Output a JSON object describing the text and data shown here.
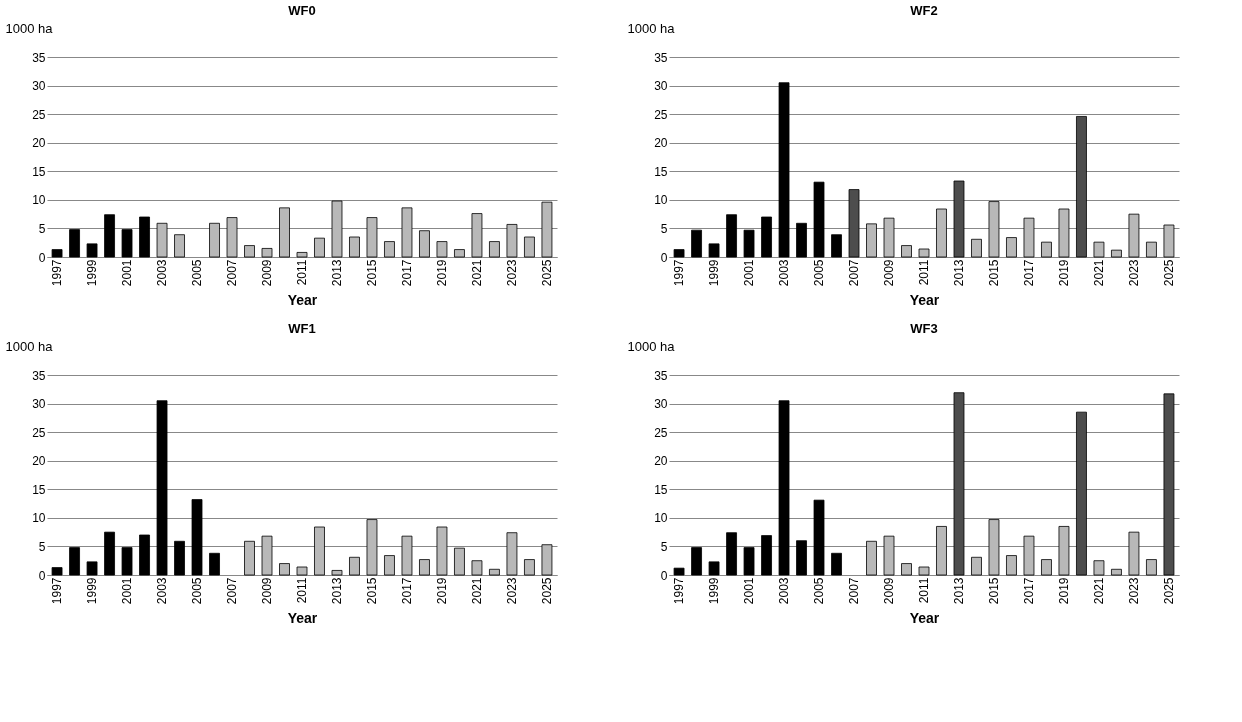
{
  "chart_data": [
    {
      "type": "bar",
      "title": "WF0",
      "xlabel": "Year",
      "ylabel": "1000 ha",
      "grid": "y",
      "ylim": [
        0,
        35
      ],
      "yticks": [
        0,
        5,
        10,
        15,
        20,
        25,
        30,
        35
      ],
      "categories": [
        "1997",
        null,
        "1999",
        null,
        "2001",
        null,
        "2003",
        null,
        "2005",
        null,
        "2007",
        null,
        "2009",
        null,
        "2011",
        null,
        "2013",
        null,
        "2015",
        null,
        "2017",
        null,
        "2019",
        null,
        "2021",
        null,
        "2023",
        null,
        "2025"
      ],
      "values": [
        1.3,
        4.8,
        2.3,
        7.4,
        4.8,
        7.0,
        5.9,
        3.9,
        null,
        5.9,
        6.9,
        2.0,
        1.5,
        8.6,
        0.8,
        3.3,
        9.8,
        3.5,
        6.9,
        2.7,
        8.6,
        4.6,
        2.7,
        1.3,
        7.6,
        2.7,
        5.7,
        3.5,
        9.6
      ],
      "colors": [
        "#000000",
        "#000000",
        "#000000",
        "#000000",
        "#000000",
        "#000000",
        "#b8b8b8",
        "#b8b8b8",
        "#b8b8b8",
        "#b8b8b8",
        "#b8b8b8",
        "#b8b8b8",
        "#b8b8b8",
        "#b8b8b8",
        "#b8b8b8",
        "#b8b8b8",
        "#b8b8b8",
        "#b8b8b8",
        "#b8b8b8",
        "#b8b8b8",
        "#b8b8b8",
        "#b8b8b8",
        "#b8b8b8",
        "#b8b8b8",
        "#b8b8b8",
        "#b8b8b8",
        "#b8b8b8",
        "#b8b8b8",
        "#b8b8b8"
      ]
    },
    {
      "type": "bar",
      "title": "WF2",
      "xlabel": "Year",
      "ylabel": "1000 ha",
      "grid": "y",
      "ylim": [
        0,
        35
      ],
      "yticks": [
        0,
        5,
        10,
        15,
        20,
        25,
        30,
        35
      ],
      "categories": [
        "1997",
        null,
        "1999",
        null,
        "2001",
        null,
        "2003",
        null,
        "2005",
        null,
        "2007",
        null,
        "2009",
        null,
        "2011",
        null,
        "2013",
        null,
        "2015",
        null,
        "2017",
        null,
        "2019",
        null,
        "2021",
        null,
        "2023",
        null,
        "2025"
      ],
      "values": [
        1.3,
        4.7,
        2.3,
        7.4,
        4.7,
        7.0,
        30.5,
        5.9,
        13.1,
        3.9,
        11.8,
        5.8,
        6.8,
        2.0,
        1.4,
        8.4,
        13.3,
        3.1,
        9.7,
        3.4,
        6.8,
        2.6,
        8.4,
        24.6,
        2.6,
        1.2,
        7.5,
        2.6,
        5.6
      ],
      "colors": [
        "#000000",
        "#000000",
        "#000000",
        "#000000",
        "#000000",
        "#000000",
        "#000000",
        "#000000",
        "#000000",
        "#000000",
        "#4d4d4d",
        "#b8b8b8",
        "#b8b8b8",
        "#b8b8b8",
        "#b8b8b8",
        "#b8b8b8",
        "#4d4d4d",
        "#b8b8b8",
        "#b8b8b8",
        "#b8b8b8",
        "#b8b8b8",
        "#b8b8b8",
        "#b8b8b8",
        "#4d4d4d",
        "#b8b8b8",
        "#b8b8b8",
        "#b8b8b8",
        "#b8b8b8",
        "#b8b8b8"
      ]
    },
    {
      "type": "bar",
      "title": "WF1",
      "xlabel": "Year",
      "ylabel": "1000 ha",
      "grid": "y",
      "ylim": [
        0,
        35
      ],
      "yticks": [
        0,
        5,
        10,
        15,
        20,
        25,
        30,
        35
      ],
      "categories": [
        "1997",
        null,
        "1999",
        null,
        "2001",
        null,
        "2003",
        null,
        "2005",
        null,
        "2007",
        null,
        "2009",
        null,
        "2011",
        null,
        "2013",
        null,
        "2015",
        null,
        "2017",
        null,
        "2019",
        null,
        "2021",
        null,
        "2023",
        null,
        "2025"
      ],
      "values": [
        1.3,
        4.8,
        2.3,
        7.5,
        4.8,
        7.0,
        30.5,
        5.9,
        13.2,
        3.8,
        null,
        5.9,
        6.8,
        2.0,
        1.4,
        8.4,
        0.8,
        3.1,
        9.7,
        3.4,
        6.8,
        2.7,
        8.4,
        4.7,
        2.5,
        1.0,
        7.4,
        2.7,
        5.3
      ],
      "colors": [
        "#000000",
        "#000000",
        "#000000",
        "#000000",
        "#000000",
        "#000000",
        "#000000",
        "#000000",
        "#000000",
        "#000000",
        "#b8b8b8",
        "#b8b8b8",
        "#b8b8b8",
        "#b8b8b8",
        "#b8b8b8",
        "#b8b8b8",
        "#b8b8b8",
        "#b8b8b8",
        "#b8b8b8",
        "#b8b8b8",
        "#b8b8b8",
        "#b8b8b8",
        "#b8b8b8",
        "#b8b8b8",
        "#b8b8b8",
        "#b8b8b8",
        "#b8b8b8",
        "#b8b8b8",
        "#b8b8b8"
      ]
    },
    {
      "type": "bar",
      "title": "WF3",
      "xlabel": "Year",
      "ylabel": "1000 ha",
      "grid": "y",
      "ylim": [
        0,
        35
      ],
      "yticks": [
        0,
        5,
        10,
        15,
        20,
        25,
        30,
        35
      ],
      "categories": [
        "1997",
        null,
        "1999",
        null,
        "2001",
        null,
        "2003",
        null,
        "2005",
        null,
        "2007",
        null,
        "2009",
        null,
        "2011",
        null,
        "2013",
        null,
        "2015",
        null,
        "2017",
        null,
        "2019",
        null,
        "2021",
        null,
        "2023",
        null,
        "2025"
      ],
      "values": [
        1.2,
        4.8,
        2.3,
        7.4,
        4.8,
        6.9,
        30.5,
        6.0,
        13.1,
        3.8,
        null,
        5.9,
        6.8,
        2.0,
        1.4,
        8.5,
        31.9,
        3.1,
        9.7,
        3.4,
        6.8,
        2.7,
        8.5,
        28.5,
        2.5,
        1.0,
        7.5,
        2.7,
        31.7
      ],
      "colors": [
        "#000000",
        "#000000",
        "#000000",
        "#000000",
        "#000000",
        "#000000",
        "#000000",
        "#000000",
        "#000000",
        "#000000",
        "#b8b8b8",
        "#b8b8b8",
        "#b8b8b8",
        "#b8b8b8",
        "#b8b8b8",
        "#b8b8b8",
        "#4d4d4d",
        "#b8b8b8",
        "#b8b8b8",
        "#b8b8b8",
        "#b8b8b8",
        "#b8b8b8",
        "#b8b8b8",
        "#4d4d4d",
        "#b8b8b8",
        "#b8b8b8",
        "#b8b8b8",
        "#b8b8b8",
        "#4d4d4d"
      ]
    }
  ]
}
